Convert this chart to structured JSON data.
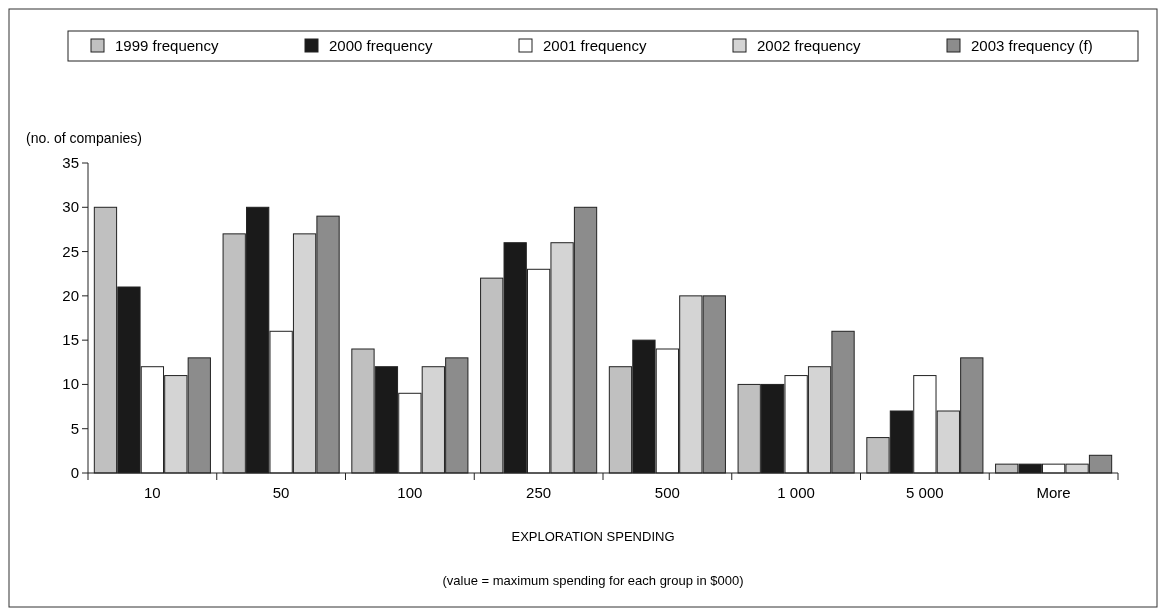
{
  "chart_data": {
    "type": "bar",
    "xlabel": "EXPLORATION SPENDING",
    "ylabel": "(no. of companies)",
    "annotations": [
      "(value = maximum spending for each group in $000)"
    ],
    "categories": [
      "10",
      "50",
      "100",
      "250",
      "500",
      "1 000",
      "5 000",
      "More"
    ],
    "series": [
      {
        "name": "1999 frequency",
        "color": "#c0c0c0",
        "values": [
          30,
          27,
          14,
          22,
          12,
          10,
          4,
          1
        ]
      },
      {
        "name": "2000 frequency",
        "color": "#1a1a1a",
        "values": [
          21,
          30,
          12,
          26,
          15,
          10,
          7,
          1
        ]
      },
      {
        "name": "2001 frequency",
        "color": "#ffffff",
        "values": [
          12,
          16,
          9,
          23,
          14,
          11,
          11,
          1
        ]
      },
      {
        "name": "2002 frequency",
        "color": "#d4d4d4",
        "values": [
          11,
          27,
          12,
          26,
          20,
          12,
          7,
          1
        ]
      },
      {
        "name": "2003 frequency (f)",
        "color": "#8c8c8c",
        "values": [
          13,
          29,
          13,
          30,
          20,
          16,
          13,
          2
        ]
      }
    ],
    "ylim": [
      0,
      35
    ],
    "yticks": [
      0,
      5,
      10,
      15,
      20,
      25,
      30,
      35
    ],
    "grid": false,
    "legend": "top"
  }
}
